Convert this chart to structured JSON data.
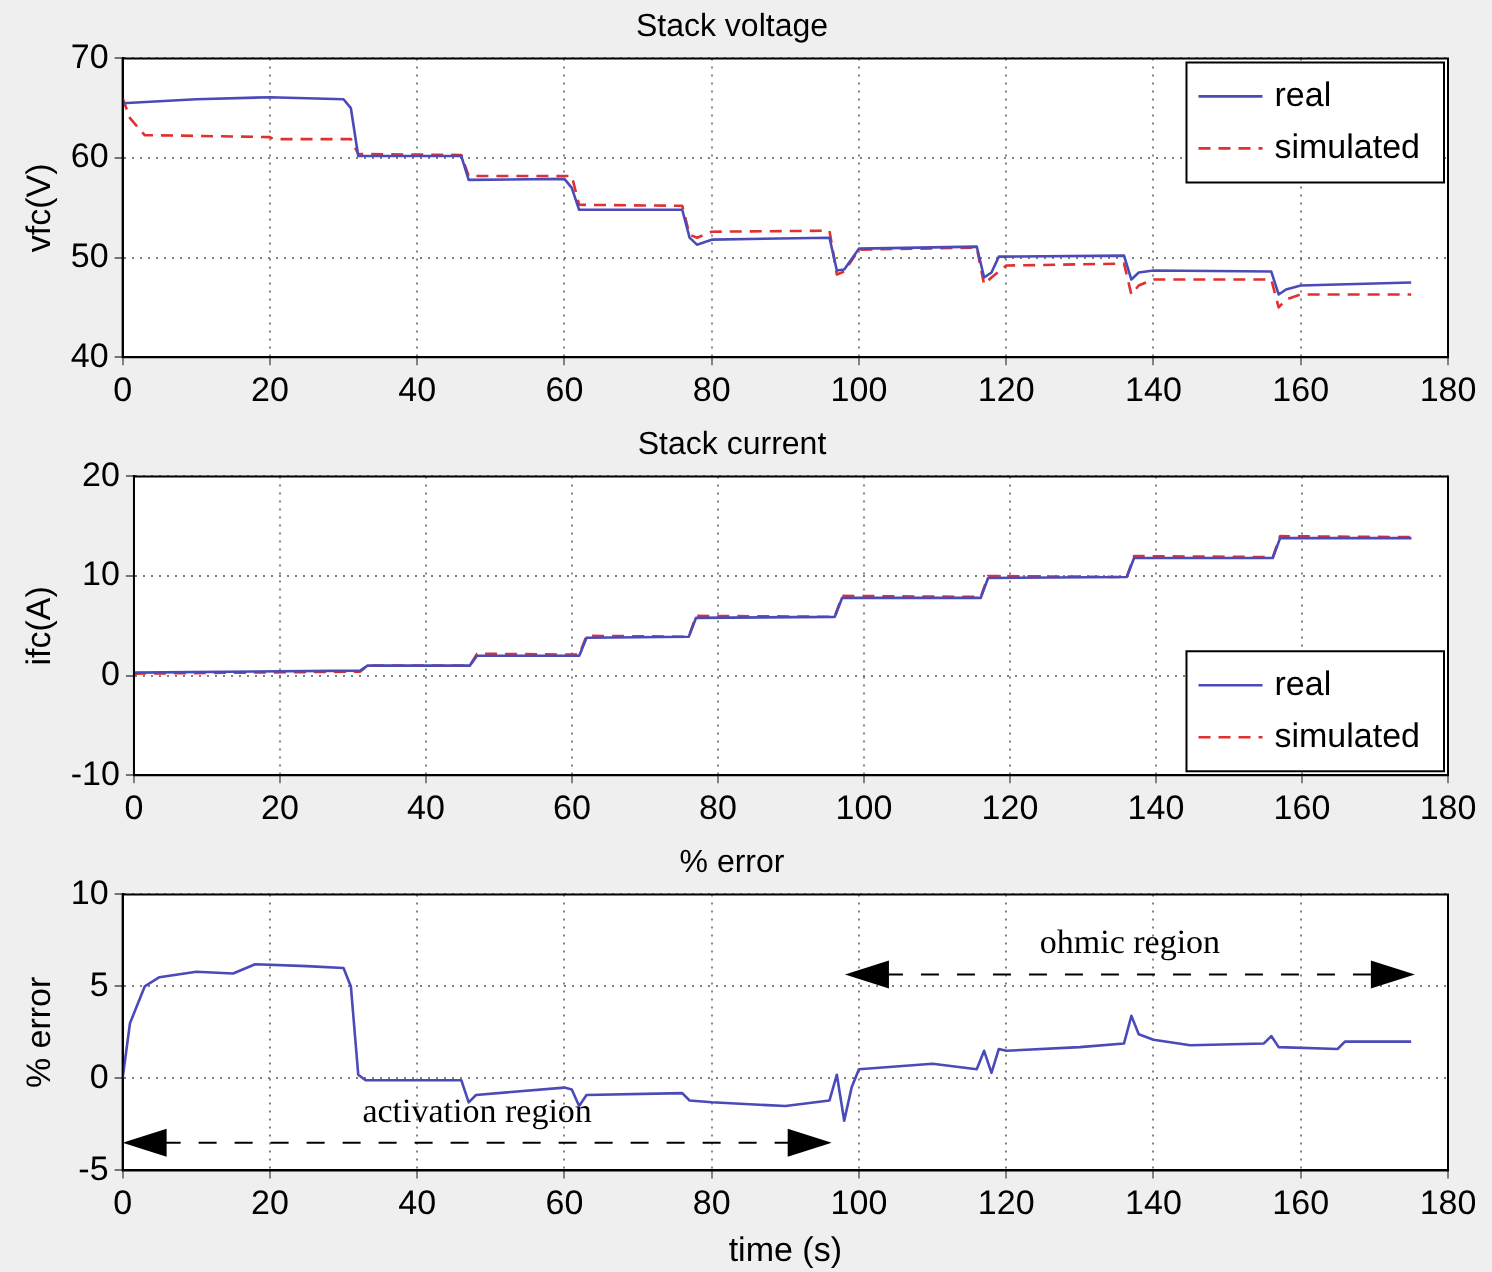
{
  "chart_data": [
    {
      "type": "line",
      "title": "Stack voltage",
      "ylabel": "vfc(V)",
      "xlim": [
        0,
        180
      ],
      "xticks": [
        0,
        20,
        40,
        60,
        80,
        100,
        120,
        140,
        160,
        180
      ],
      "ylim": [
        40,
        70
      ],
      "yticks": [
        40,
        50,
        60,
        70
      ],
      "grid": true,
      "legend": "top right",
      "marker": "none",
      "series": [
        {
          "name": "real",
          "color": "#4a4ab8",
          "line_style": "solid",
          "x": [
            0,
            5,
            10,
            20,
            30,
            31,
            32,
            46,
            47,
            60,
            61,
            62,
            76,
            77,
            78,
            80,
            96,
            97,
            98,
            100,
            116,
            117,
            118,
            119,
            136,
            137,
            138,
            140,
            156,
            157,
            158,
            160,
            175
          ],
          "values": [
            65.5,
            65.7,
            65.9,
            66.1,
            65.9,
            65,
            60.2,
            60.2,
            57.8,
            57.9,
            57,
            54.8,
            54.8,
            52,
            51.3,
            51.8,
            52,
            48.7,
            48.8,
            50.9,
            51.1,
            48,
            48.5,
            50.1,
            50.2,
            47.8,
            48.5,
            48.7,
            48.6,
            46.3,
            46.8,
            47.2,
            47.5
          ]
        },
        {
          "name": "simulated",
          "color": "#e03030",
          "line_style": "dashed",
          "x": [
            0,
            1,
            3,
            20,
            20.5,
            31,
            32,
            46,
            47,
            61,
            62,
            76,
            77,
            78,
            80,
            96,
            97,
            98,
            100,
            116,
            117,
            118,
            120,
            136,
            137,
            138,
            140,
            156,
            157,
            158,
            160,
            175
          ],
          "values": [
            66,
            64,
            62.3,
            62.1,
            61.9,
            61.9,
            60.4,
            60.3,
            58.2,
            58.2,
            55.3,
            55.2,
            52.3,
            52,
            52.6,
            52.7,
            48.3,
            48.6,
            50.8,
            51,
            47.3,
            48,
            49.2,
            49.4,
            46.3,
            47.2,
            47.8,
            47.8,
            45,
            45.8,
            46.3,
            46.3
          ]
        }
      ]
    },
    {
      "type": "line",
      "title": "Stack current",
      "ylabel": "ifc(A)",
      "xlim": [
        0,
        180
      ],
      "xticks": [
        0,
        20,
        40,
        60,
        80,
        100,
        120,
        140,
        160,
        180
      ],
      "ylim": [
        -10,
        20
      ],
      "yticks": [
        -10,
        0,
        10,
        20
      ],
      "grid": true,
      "legend": "bottom right",
      "marker": "none",
      "series": [
        {
          "name": "real",
          "color": "#4a4ab8",
          "line_style": "solid",
          "x": [
            0,
            31,
            32,
            46,
            47,
            61,
            62,
            76,
            77,
            96,
            97,
            116,
            117,
            136,
            137,
            156,
            157,
            175
          ],
          "values": [
            0.3,
            0.5,
            1,
            1,
            2,
            2,
            3.8,
            3.9,
            5.8,
            5.9,
            7.8,
            7.8,
            9.8,
            9.9,
            11.8,
            11.8,
            13.8,
            13.8
          ]
        },
        {
          "name": "simulated",
          "color": "#e03030",
          "line_style": "dashed",
          "x": [
            0,
            31,
            32,
            46,
            47,
            61,
            62,
            76,
            77,
            96,
            97,
            116,
            117,
            136,
            137,
            156,
            157,
            175
          ],
          "values": [
            0.2,
            0.4,
            1,
            1,
            2.2,
            2.1,
            4,
            3.9,
            6,
            5.9,
            8,
            7.9,
            10,
            9.9,
            12,
            11.9,
            14,
            13.9
          ]
        }
      ]
    },
    {
      "type": "line",
      "title": "% error",
      "xlabel": "time (s)",
      "ylabel": "% error",
      "xlim": [
        0,
        180
      ],
      "xticks": [
        0,
        20,
        40,
        60,
        80,
        100,
        120,
        140,
        160,
        180
      ],
      "ylim": [
        -5,
        10
      ],
      "yticks": [
        -5,
        0,
        5,
        10
      ],
      "grid": true,
      "marker": "none",
      "annotations": [
        "activation region",
        "ohmic region"
      ],
      "series": [
        {
          "color": "#4a4ab8",
          "line_style": "solid",
          "x": [
            0,
            1,
            3,
            5,
            10,
            15,
            18,
            25,
            30,
            31,
            32,
            33,
            46,
            47,
            48,
            60,
            61,
            62,
            63,
            76,
            77,
            80,
            90,
            96,
            97,
            98,
            99,
            100,
            110,
            116,
            117,
            118,
            119,
            120,
            130,
            136,
            137,
            138,
            140,
            145,
            155,
            156,
            157,
            165,
            166,
            175
          ],
          "values": [
            0,
            3,
            5,
            5.5,
            5.8,
            5.7,
            6.2,
            6.1,
            6,
            5,
            0.2,
            -0.1,
            -0.1,
            -1.3,
            -0.9,
            -0.5,
            -0.6,
            -1.5,
            -0.9,
            -0.8,
            -1.2,
            -1.3,
            -1.5,
            -1.2,
            0.2,
            -2.3,
            -0.5,
            0.5,
            0.8,
            0.5,
            1.5,
            0.3,
            1.6,
            1.5,
            1.7,
            1.9,
            3.4,
            2.4,
            2.1,
            1.8,
            1.9,
            2.3,
            1.7,
            1.6,
            2,
            2
          ]
        }
      ]
    }
  ]
}
